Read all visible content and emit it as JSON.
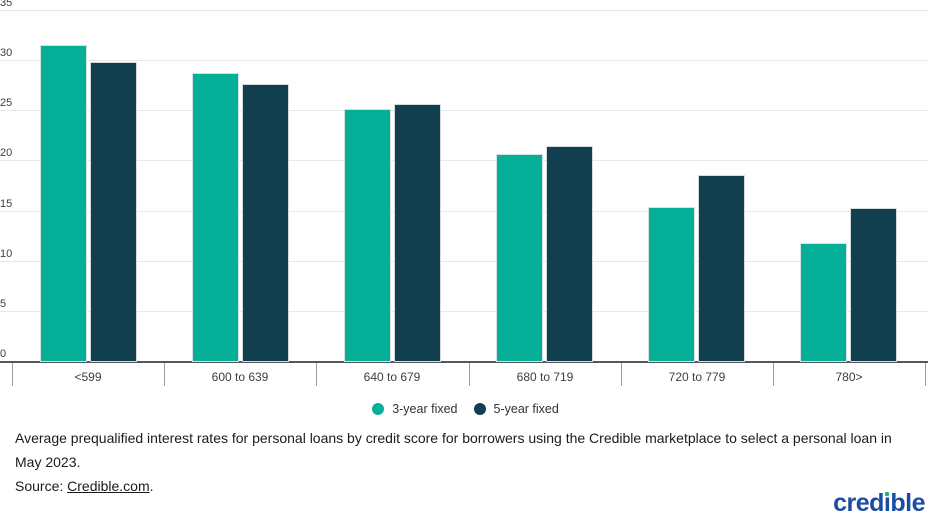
{
  "chart_data": {
    "type": "bar",
    "title": "",
    "categories": [
      "<599",
      "600 to 639",
      "640 to 679",
      "680 to 719",
      "720 to 779",
      "780>"
    ],
    "series": [
      {
        "name": "3-year fixed",
        "color": "#06b098",
        "values": [
          31.6,
          28.8,
          25.2,
          20.7,
          15.5,
          11.9
        ]
      },
      {
        "name": "5-year fixed",
        "color": "#123f4d",
        "values": [
          29.9,
          27.7,
          25.7,
          21.5,
          18.6,
          15.4
        ]
      }
    ],
    "ylim": [
      0,
      35
    ],
    "yticks": [
      0,
      5,
      10,
      15,
      20,
      25,
      30,
      35
    ],
    "grid": "horizontal-major",
    "legend_position": "bottom",
    "xlabel": "",
    "ylabel": ""
  },
  "colors": {
    "gridline": "#e7e7e7",
    "axis": "#55585a",
    "tick": "#9b9b9b",
    "axis_text": "#3c4043"
  },
  "caption": {
    "line1": "Average prequalified interest rates for personal loans by credit score for borrowers using the Credible marketplace to select a personal loan in May 2023.",
    "source_prefix": "Source: ",
    "source_link": "Credible.com",
    "source_suffix": "."
  },
  "logo": {
    "part1": "cred",
    "dotless_i": "ı",
    "part2": "ble",
    "text_color": "#1a4ca3",
    "dot_color": "#21b573"
  }
}
